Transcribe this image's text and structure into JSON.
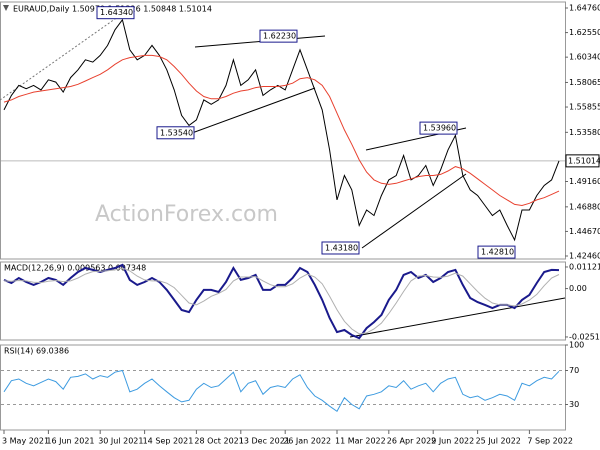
{
  "chart_data": [
    {
      "type": "line",
      "title": "EURAUD,Daily  1.50979 1.51326 1.50848 1.51014",
      "watermark": "ActionForex.com",
      "ylim": [
        1.4219,
        1.653
      ],
      "yticks": [
        {
          "value": 1.6476,
          "label": "1.64760"
        },
        {
          "value": 1.6255,
          "label": "1.62550"
        },
        {
          "value": 1.6034,
          "label": "1.60340"
        },
        {
          "value": 1.58065,
          "label": "1.58065"
        },
        {
          "value": 1.55855,
          "label": "1.55855"
        },
        {
          "value": 1.5358,
          "label": "1.53580"
        },
        {
          "value": 1.4916,
          "label": "1.49160"
        },
        {
          "value": 1.4688,
          "label": "1.46880"
        },
        {
          "value": 1.4467,
          "label": "1.44670"
        },
        {
          "value": 1.4246,
          "label": "1.42460"
        }
      ],
      "grid": false,
      "current_price": {
        "value": 1.51014,
        "label": "1.51014"
      },
      "annotations": [
        {
          "value": 1.6434,
          "label": "1.64340"
        },
        {
          "value": 1.6223,
          "label": "1.62230"
        },
        {
          "value": 1.5354,
          "label": "1.53540"
        },
        {
          "value": 1.5396,
          "label": "1.53960"
        },
        {
          "value": 1.4318,
          "label": "1.43180"
        },
        {
          "value": 1.4281,
          "label": "1.42810"
        }
      ],
      "series": [
        {
          "color": "#000000",
          "values": [
            1.556,
            1.569,
            1.578,
            1.575,
            1.578,
            1.574,
            1.583,
            1.581,
            1.572,
            1.585,
            1.592,
            1.601,
            1.599,
            1.605,
            1.614,
            1.628,
            1.637,
            1.61,
            1.601,
            1.605,
            1.614,
            1.605,
            1.592,
            1.574,
            1.551,
            1.542,
            1.547,
            1.565,
            1.561,
            1.565,
            1.578,
            1.601,
            1.578,
            1.583,
            1.592,
            1.569,
            1.574,
            1.578,
            1.574,
            1.592,
            1.61,
            1.592,
            1.574,
            1.556,
            1.52,
            1.475,
            1.497,
            1.484,
            1.452,
            1.466,
            1.461,
            1.479,
            1.493,
            1.497,
            1.515,
            1.493,
            1.497,
            1.506,
            1.488,
            1.502,
            1.52,
            1.533,
            1.497,
            1.484,
            1.479,
            1.47,
            1.461,
            1.466,
            1.452,
            1.439,
            1.466,
            1.466,
            1.479,
            1.488,
            1.493,
            1.51014
          ]
        },
        {
          "color": "#e8412f",
          "values": [
            1.563,
            1.565,
            1.568,
            1.57,
            1.572,
            1.573,
            1.574,
            1.575,
            1.576,
            1.577,
            1.579,
            1.582,
            1.585,
            1.588,
            1.592,
            1.597,
            1.601,
            1.603,
            1.604,
            1.605,
            1.605,
            1.604,
            1.601,
            1.595,
            1.588,
            1.58,
            1.573,
            1.568,
            1.566,
            1.566,
            1.568,
            1.571,
            1.573,
            1.574,
            1.576,
            1.577,
            1.577,
            1.577,
            1.578,
            1.58,
            1.584,
            1.585,
            1.583,
            1.578,
            1.568,
            1.553,
            1.538,
            1.525,
            1.511,
            1.5,
            1.493,
            1.49,
            1.489,
            1.49,
            1.492,
            1.494,
            1.496,
            1.497,
            1.497,
            1.498,
            1.501,
            1.505,
            1.503,
            1.499,
            1.494,
            1.489,
            1.484,
            1.479,
            1.475,
            1.471,
            1.47,
            1.472,
            1.475,
            1.477,
            1.48,
            1.483
          ]
        }
      ]
    },
    {
      "type": "line",
      "title": "MACD(12,26,9) 0.009563 0.007348",
      "ylim": [
        -0.0267,
        0.0138
      ],
      "yticks": [
        0.011215,
        {
          "value": 0,
          "label": "0.00"
        },
        -0.025119
      ],
      "grid": false,
      "series": [
        {
          "color": "#1a1a8c",
          "values": [
            0.0045,
            0.0029,
            0.0055,
            0.0034,
            0.0019,
            0.0034,
            0.0055,
            0.0045,
            0.0019,
            0.0055,
            0.0086,
            0.0107,
            0.0097,
            0.0086,
            0.0097,
            0.0107,
            0.0123,
            0.0045,
            0.0019,
            0.0034,
            0.0055,
            0.0034,
            -0.0007,
            -0.0059,
            -0.0111,
            -0.0122,
            -0.0059,
            -0.0007,
            -0.0007,
            -0.0018,
            0.0034,
            0.0107,
            0.0045,
            0.0055,
            0.0071,
            -0.0007,
            -0.0007,
            0.0019,
            0.0019,
            0.0055,
            0.0107,
            0.0086,
            0.0019,
            -0.0059,
            -0.0153,
            -0.0226,
            -0.0215,
            -0.0241,
            -0.0257,
            -0.0205,
            -0.0174,
            -0.0137,
            -0.0059,
            -0.0007,
            0.0071,
            0.0086,
            0.0055,
            0.0071,
            0.0034,
            0.0055,
            0.0086,
            0.0097,
            0.0019,
            -0.0049,
            -0.007,
            -0.0085,
            -0.0101,
            -0.0085,
            -0.0085,
            -0.0101,
            -0.0059,
            -0.0033,
            0.0029,
            0.0086,
            0.0097,
            0.0096
          ]
        },
        {
          "color": "#b0b0b0",
          "values": [
            0.004,
            0.0038,
            0.0042,
            0.004,
            0.0033,
            0.0031,
            0.0038,
            0.0042,
            0.0036,
            0.004,
            0.0055,
            0.0075,
            0.0088,
            0.009,
            0.0093,
            0.0097,
            0.0106,
            0.0092,
            0.0065,
            0.0045,
            0.004,
            0.004,
            0.0028,
            0.0005,
            -0.0035,
            -0.0075,
            -0.0085,
            -0.0065,
            -0.004,
            -0.0025,
            -0.0005,
            0.004,
            0.006,
            0.006,
            0.0062,
            0.004,
            0.002,
            0.001,
            0.001,
            0.0025,
            0.0055,
            0.0075,
            0.006,
            0.0025,
            -0.004,
            -0.011,
            -0.017,
            -0.021,
            -0.0235,
            -0.023,
            -0.021,
            -0.018,
            -0.013,
            -0.0075,
            -0.0015,
            0.004,
            0.0065,
            0.0068,
            0.006,
            0.0058,
            0.0065,
            0.008,
            0.0065,
            0.0025,
            -0.0015,
            -0.005,
            -0.0075,
            -0.0085,
            -0.0085,
            -0.009,
            -0.008,
            -0.006,
            -0.003,
            0.0015,
            0.0055,
            0.0073
          ]
        }
      ]
    },
    {
      "type": "line",
      "title": "RSI(14) 69.0386",
      "ylim": [
        0,
        100
      ],
      "yticks": [
        100,
        70,
        30
      ],
      "grid": true,
      "categories": [
        "3 May 2021",
        null,
        null,
        null,
        null,
        null,
        "16 Jun 2021",
        null,
        null,
        null,
        null,
        null,
        null,
        "30 Jul 2021",
        null,
        null,
        null,
        null,
        null,
        "14 Sep 2021",
        null,
        null,
        null,
        null,
        null,
        null,
        "28 Oct 2021",
        null,
        null,
        null,
        null,
        null,
        "13 Dec 2021",
        null,
        null,
        null,
        null,
        null,
        "26 Jan 2022",
        null,
        null,
        null,
        null,
        null,
        null,
        "11 Mar 2022",
        null,
        null,
        null,
        null,
        null,
        null,
        "26 Apr 2022",
        null,
        null,
        null,
        null,
        null,
        "9 Jun 2022",
        null,
        null,
        null,
        null,
        null,
        "25 Jul 2022",
        null,
        null,
        null,
        null,
        null,
        null,
        "7 Sep 2022",
        null,
        null,
        null,
        null
      ],
      "series": [
        {
          "color": "#3d9be0",
          "values": [
            45,
            58,
            60,
            55,
            52,
            56,
            60,
            57,
            48,
            62,
            63,
            66,
            60,
            64,
            62,
            68,
            70,
            45,
            48,
            55,
            60,
            52,
            45,
            38,
            33,
            35,
            48,
            55,
            50,
            52,
            60,
            68,
            45,
            55,
            58,
            42,
            50,
            52,
            50,
            60,
            65,
            50,
            40,
            35,
            28,
            22,
            38,
            30,
            25,
            40,
            42,
            45,
            52,
            50,
            58,
            48,
            52,
            55,
            45,
            55,
            60,
            62,
            42,
            38,
            40,
            35,
            38,
            42,
            40,
            35,
            55,
            52,
            58,
            62,
            60,
            69.0386
          ]
        }
      ]
    }
  ]
}
